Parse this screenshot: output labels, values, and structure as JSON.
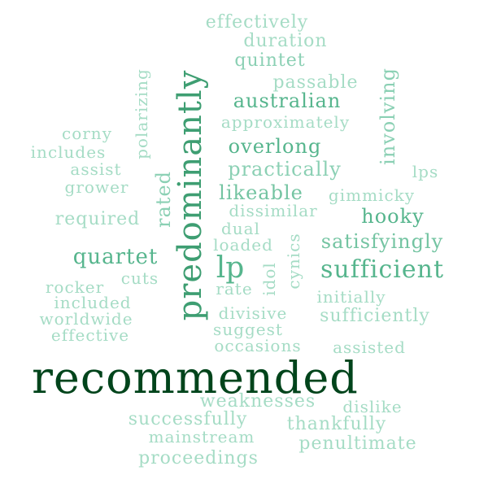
{
  "words": {
    "recommended": "recommended",
    "predominantly": "predominantly",
    "lp": "lp",
    "sufficient": "sufficient",
    "quartet": "quartet",
    "australian": "australian",
    "overlong": "overlong",
    "practically": "practically",
    "likeable": "likeable",
    "hooky": "hooky",
    "satisfyingly": "satisfyingly",
    "involving": "involving",
    "rated": "rated",
    "quintet": "quintet",
    "effectively": "effectively",
    "duration": "duration",
    "passable": "passable",
    "approximately": "approximately",
    "polarizing": "polarizing",
    "corny": "corny",
    "includes": "includes",
    "assist": "assist",
    "grower": "grower",
    "required": "required",
    "gimmicky": "gimmicky",
    "lps": "lps",
    "dissimilar": "dissimilar",
    "dual": "dual",
    "loaded": "loaded",
    "cynics": "cynics",
    "idol": "idol",
    "rocker": "rocker",
    "cuts": "cuts",
    "included": "included",
    "rate": "rate",
    "initially": "initially",
    "worldwide": "worldwide",
    "divisive": "divisive",
    "sufficiently": "sufficiently",
    "effective": "effective",
    "suggest": "suggest",
    "occasions": "occasions",
    "assisted": "assisted",
    "weaknesses": "weaknesses",
    "dislike": "dislike",
    "successfully": "successfully",
    "thankfully": "thankfully",
    "mainstream": "mainstream",
    "penultimate": "penultimate",
    "proceedings": "proceedings"
  }
}
